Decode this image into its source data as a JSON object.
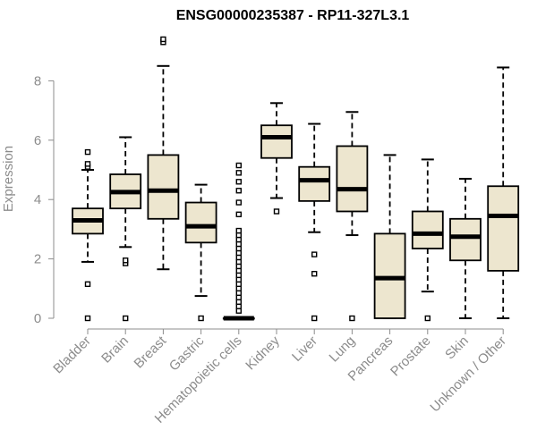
{
  "chart_data": {
    "type": "boxplot",
    "title": "ENSG00000235387 - RP11-327L3.1",
    "xlabel": "",
    "ylabel": "Expression",
    "ylim": [
      0,
      9.6
    ],
    "yticks": [
      0,
      2,
      4,
      6,
      8
    ],
    "categories": [
      "Bladder",
      "Brain",
      "Breast",
      "Gastric",
      "Hematopoietic cells",
      "Kidney",
      "Liver",
      "Lung",
      "Pancreas",
      "Prostate",
      "Skin",
      "Unknown / Other"
    ],
    "boxes": [
      {
        "category": "Bladder",
        "whisker_low": 1.9,
        "q1": 2.85,
        "median": 3.3,
        "q3": 3.7,
        "whisker_high": 5.0,
        "outliers": [
          0,
          1.15,
          5.1,
          5.2,
          5.6
        ]
      },
      {
        "category": "Brain",
        "whisker_low": 2.4,
        "q1": 3.7,
        "median": 4.25,
        "q3": 4.85,
        "whisker_high": 6.1,
        "outliers": [
          0,
          1.85,
          1.95
        ]
      },
      {
        "category": "Breast",
        "whisker_low": 1.65,
        "q1": 3.35,
        "median": 4.3,
        "q3": 5.5,
        "whisker_high": 8.5,
        "outliers": [
          9.3,
          9.4
        ]
      },
      {
        "category": "Gastric",
        "whisker_low": 0.75,
        "q1": 2.55,
        "median": 3.1,
        "q3": 3.9,
        "whisker_high": 4.5,
        "outliers": [
          0
        ]
      },
      {
        "category": "Hematopoietic cells",
        "whisker_low": 0,
        "q1": 0,
        "median": 0,
        "q3": 0,
        "whisker_high": 0,
        "outliers": [
          0.25,
          0.4,
          0.55,
          0.7,
          0.85,
          1.0,
          1.15,
          1.3,
          1.45,
          1.6,
          1.75,
          1.9,
          2.05,
          2.2,
          2.35,
          2.5,
          2.65,
          2.8,
          2.95,
          3.5,
          3.9,
          4.3,
          4.6,
          4.9,
          5.15
        ]
      },
      {
        "category": "Kidney",
        "whisker_low": 4.05,
        "q1": 5.4,
        "median": 6.1,
        "q3": 6.5,
        "whisker_high": 7.25,
        "outliers": [
          3.6
        ]
      },
      {
        "category": "Liver",
        "whisker_low": 2.9,
        "q1": 3.95,
        "median": 4.65,
        "q3": 5.1,
        "whisker_high": 6.55,
        "outliers": [
          0,
          1.5,
          2.15
        ]
      },
      {
        "category": "Lung",
        "whisker_low": 2.8,
        "q1": 3.6,
        "median": 4.35,
        "q3": 5.8,
        "whisker_high": 6.95,
        "outliers": [
          0
        ]
      },
      {
        "category": "Pancreas",
        "whisker_low": 0,
        "q1": 0,
        "median": 1.35,
        "q3": 2.85,
        "whisker_high": 5.5,
        "outliers": []
      },
      {
        "category": "Prostate",
        "whisker_low": 0.9,
        "q1": 2.35,
        "median": 2.85,
        "q3": 3.6,
        "whisker_high": 5.35,
        "outliers": [
          0
        ]
      },
      {
        "category": "Skin",
        "whisker_low": 0,
        "q1": 1.95,
        "median": 2.75,
        "q3": 3.35,
        "whisker_high": 4.7,
        "outliers": []
      },
      {
        "category": "Unknown / Other",
        "whisker_low": 0,
        "q1": 1.6,
        "median": 3.45,
        "q3": 4.45,
        "whisker_high": 8.45,
        "outliers": []
      }
    ],
    "colors": {
      "box_fill": "#ede6cf",
      "box_stroke": "#000000",
      "median": "#000000",
      "axis": "#8c8c8c",
      "label": "#8c8c8c"
    },
    "grid": false,
    "legend": "none"
  }
}
